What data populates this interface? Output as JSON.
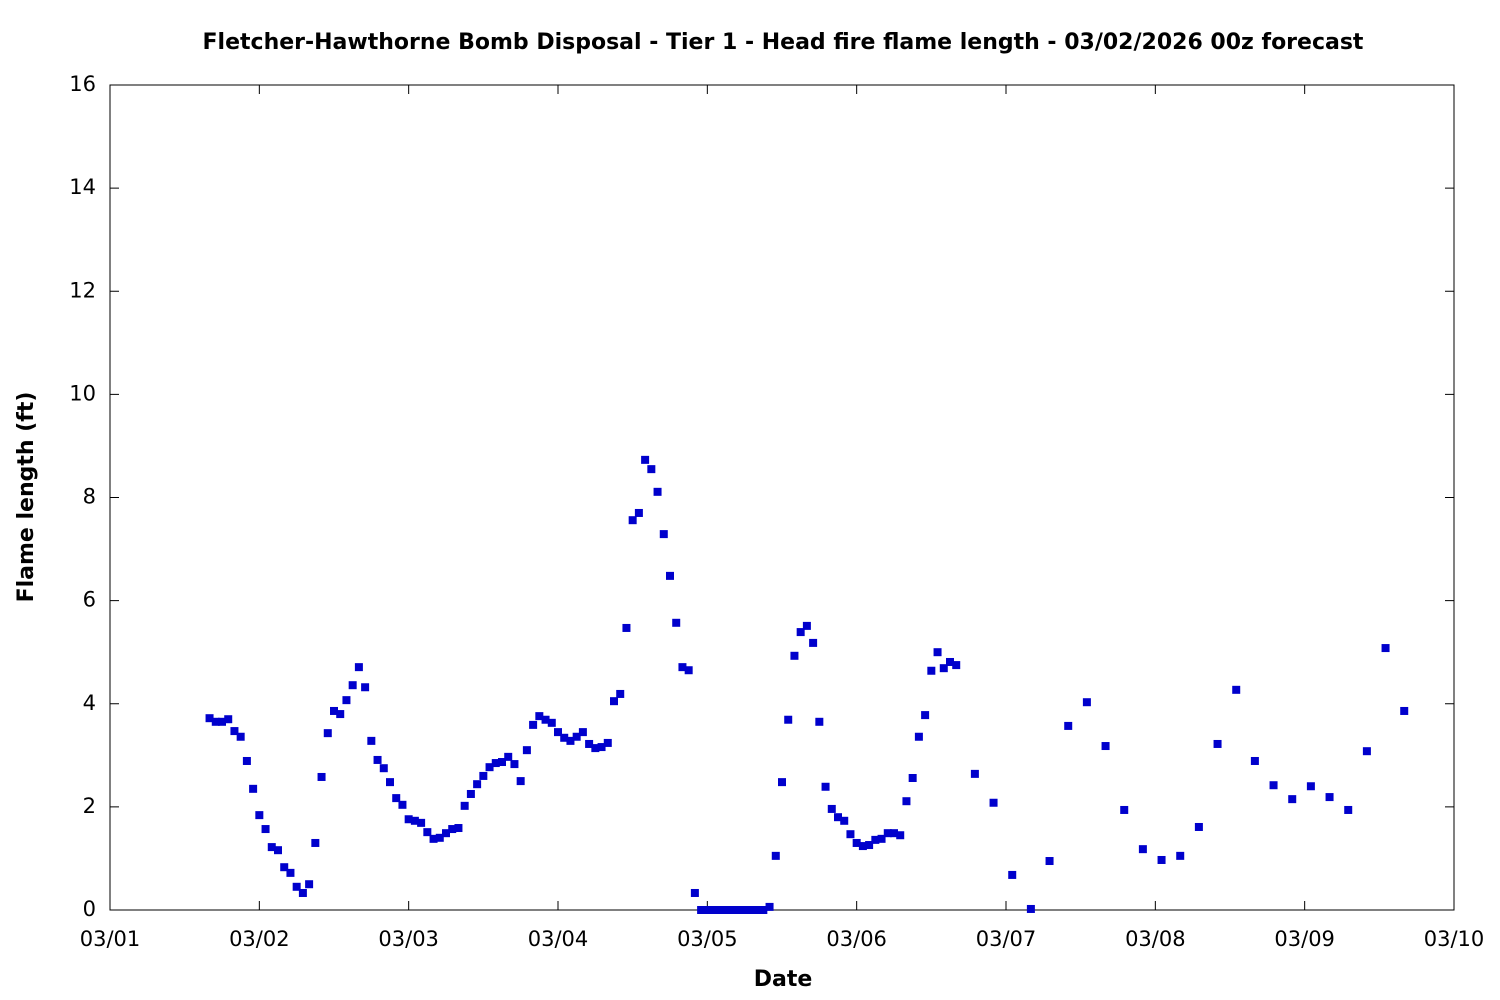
{
  "chart_data": {
    "type": "scatter",
    "title": "Fletcher-Hawthorne Bomb Disposal - Tier 1 - Head fire flame length - 03/02/2026 00z forecast",
    "xlabel": "Date",
    "ylabel": "Flame length (ft)",
    "xlim": [
      0,
      216
    ],
    "ylim": [
      0,
      16
    ],
    "xticks": [
      {
        "value": 0,
        "label": "03/01"
      },
      {
        "value": 24,
        "label": "03/02"
      },
      {
        "value": 48,
        "label": "03/03"
      },
      {
        "value": 72,
        "label": "03/04"
      },
      {
        "value": 96,
        "label": "03/05"
      },
      {
        "value": 120,
        "label": "03/06"
      },
      {
        "value": 144,
        "label": "03/07"
      },
      {
        "value": 168,
        "label": "03/08"
      },
      {
        "value": 192,
        "label": "03/09"
      },
      {
        "value": 216,
        "label": "03/10"
      }
    ],
    "yticks": [
      0,
      2,
      4,
      6,
      8,
      10,
      12,
      14,
      16
    ],
    "color": "#0000cc",
    "x": [
      16,
      17,
      18,
      19,
      20,
      21,
      22,
      23,
      24,
      25,
      26,
      27,
      28,
      29,
      30,
      31,
      32,
      33,
      34,
      35,
      36,
      37,
      38,
      39,
      40,
      41,
      42,
      43,
      44,
      45,
      46,
      47,
      48,
      49,
      50,
      51,
      52,
      53,
      54,
      55,
      56,
      57,
      58,
      59,
      60,
      61,
      62,
      63,
      64,
      65,
      66,
      67,
      68,
      69,
      70,
      71,
      72,
      73,
      74,
      75,
      76,
      77,
      78,
      79,
      80,
      81,
      82,
      83,
      84,
      85,
      86,
      87,
      88,
      89,
      90,
      91,
      92,
      93,
      94,
      95,
      96,
      97,
      98,
      99,
      100,
      101,
      102,
      103,
      104,
      105,
      106,
      107,
      108,
      109,
      110,
      111,
      112,
      113,
      114,
      115,
      116,
      117,
      118,
      119,
      120,
      121,
      122,
      123,
      124,
      125,
      126,
      127,
      128,
      129,
      130,
      131,
      132,
      133,
      134,
      135,
      136,
      139,
      142,
      145,
      148,
      151,
      154,
      157,
      160,
      163,
      166,
      169,
      172,
      175,
      178,
      181,
      184,
      187,
      190,
      193,
      196,
      199,
      202,
      205,
      208
    ],
    "values": [
      3.72,
      3.65,
      3.65,
      3.7,
      3.47,
      3.36,
      2.89,
      2.35,
      1.84,
      1.57,
      1.22,
      1.16,
      0.83,
      0.72,
      0.45,
      0.33,
      0.5,
      1.3,
      2.58,
      3.43,
      3.86,
      3.8,
      4.07,
      4.36,
      4.71,
      4.32,
      3.28,
      2.91,
      2.75,
      2.48,
      2.17,
      2.04,
      1.76,
      1.73,
      1.69,
      1.51,
      1.38,
      1.4,
      1.49,
      1.57,
      1.59,
      2.02,
      2.25,
      2.44,
      2.6,
      2.77,
      2.85,
      2.87,
      2.97,
      2.83,
      2.5,
      3.1,
      3.59,
      3.76,
      3.69,
      3.63,
      3.45,
      3.34,
      3.28,
      3.36,
      3.45,
      3.22,
      3.14,
      3.16,
      3.24,
      4.05,
      4.19,
      5.47,
      7.56,
      7.7,
      8.73,
      8.55,
      8.11,
      7.29,
      6.48,
      5.57,
      4.71,
      4.65,
      0.33,
      0,
      0,
      0,
      0,
      0,
      0,
      0,
      0,
      0,
      0,
      0,
      0.06,
      1.05,
      2.48,
      3.69,
      4.93,
      5.39,
      5.51,
      5.18,
      3.65,
      2.39,
      1.96,
      1.8,
      1.73,
      1.47,
      1.3,
      1.24,
      1.26,
      1.36,
      1.38,
      1.49,
      1.49,
      1.45,
      2.11,
      2.56,
      3.36,
      3.78,
      4.64,
      5,
      4.69,
      4.81,
      4.75,
      2.64,
      2.08,
      0.68,
      0.02,
      0.95,
      3.57,
      4.03,
      3.18,
      1.94,
      1.18,
      0.97,
      1.05,
      1.61,
      3.22,
      4.27,
      2.89,
      2.42,
      2.15,
      2.4,
      2.19,
      1.94,
      3.08,
      5.08,
      3.86
    ]
  }
}
